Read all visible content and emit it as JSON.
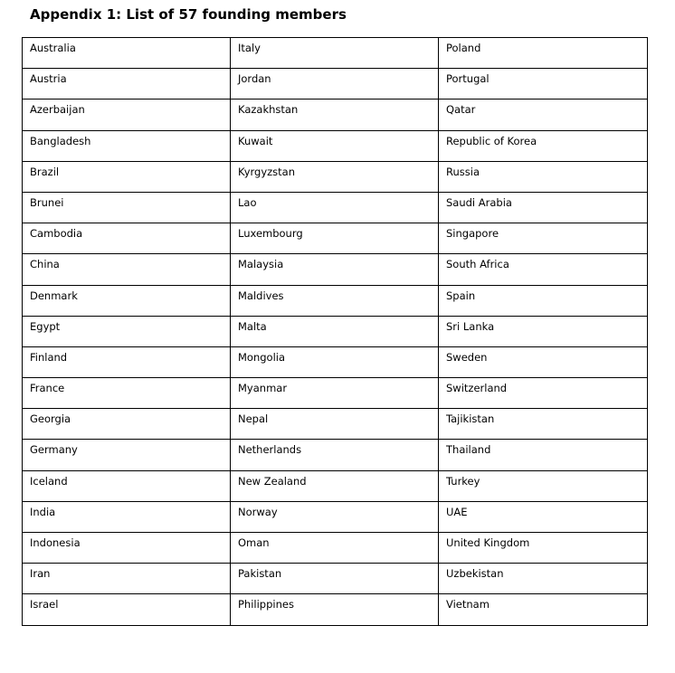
{
  "title": "Appendix 1: List of 57 founding members",
  "rows": [
    [
      "Australia",
      "Italy",
      "Poland"
    ],
    [
      "Austria",
      "Jordan",
      "Portugal"
    ],
    [
      "Azerbaijan",
      "Kazakhstan",
      "Qatar"
    ],
    [
      "Bangladesh",
      "Kuwait",
      "Republic of Korea"
    ],
    [
      "Brazil",
      "Kyrgyzstan",
      "Russia"
    ],
    [
      "Brunei",
      "Lao",
      "Saudi Arabia"
    ],
    [
      "Cambodia",
      "Luxembourg",
      "Singapore"
    ],
    [
      "China",
      "Malaysia",
      "South Africa"
    ],
    [
      "Denmark",
      "Maldives",
      "Spain"
    ],
    [
      "Egypt",
      "Malta",
      "Sri Lanka"
    ],
    [
      "Finland",
      "Mongolia",
      "Sweden"
    ],
    [
      "France",
      "Myanmar",
      "Switzerland"
    ],
    [
      "Georgia",
      "Nepal",
      "Tajikistan"
    ],
    [
      "Germany",
      "Netherlands",
      "Thailand"
    ],
    [
      "Iceland",
      "New Zealand",
      "Turkey"
    ],
    [
      "India",
      "Norway",
      "UAE"
    ],
    [
      "Indonesia",
      "Oman",
      "United Kingdom"
    ],
    [
      "Iran",
      "Pakistan",
      "Uzbekistan"
    ],
    [
      "Israel",
      "Philippines",
      "Vietnam"
    ]
  ]
}
